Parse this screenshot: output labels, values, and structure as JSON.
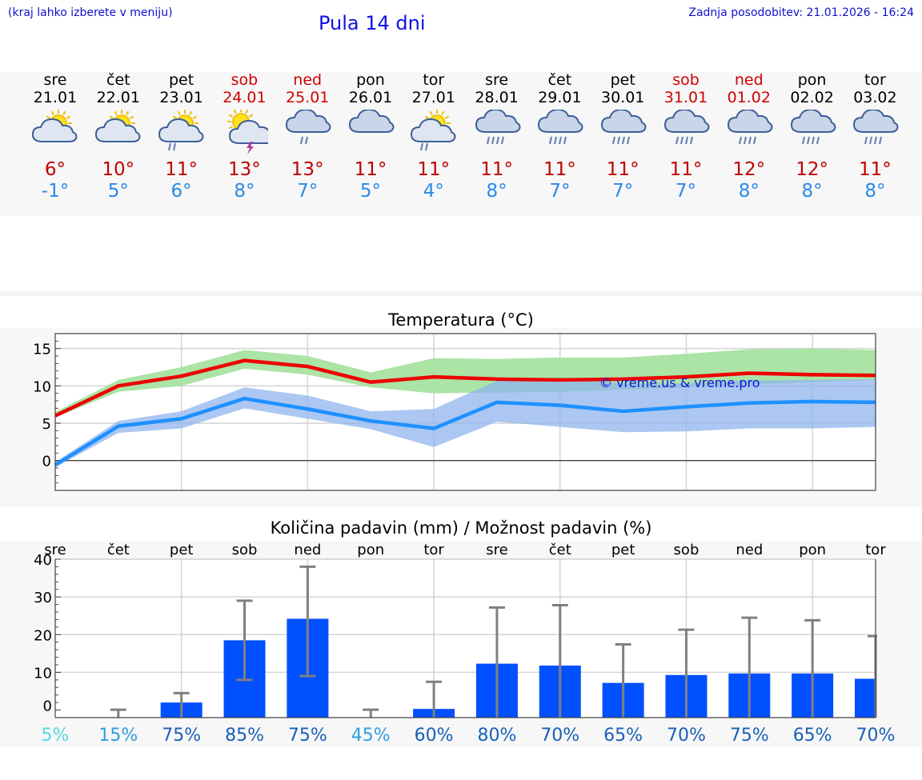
{
  "header": {
    "hint": "(kraj lahko izberete v meniju)",
    "title": "Pula 14 dni",
    "updated": "Zadnja posodobitev: 21.01.2026 - 16:24"
  },
  "days": [
    {
      "name": "sre",
      "date": "21.01",
      "weekend": false,
      "icon": "sun-cloud-icon",
      "hi": "6°",
      "lo": "-1°"
    },
    {
      "name": "čet",
      "date": "22.01",
      "weekend": false,
      "icon": "sun-cloud-icon",
      "hi": "10°",
      "lo": "5°"
    },
    {
      "name": "pet",
      "date": "23.01",
      "weekend": false,
      "icon": "sun-cloud-rain-icon",
      "hi": "11°",
      "lo": "6°"
    },
    {
      "name": "sob",
      "date": "24.01",
      "weekend": true,
      "icon": "sun-cloud-thunder-icon",
      "hi": "13°",
      "lo": "8°"
    },
    {
      "name": "ned",
      "date": "25.01",
      "weekend": true,
      "icon": "cloud-rain-icon",
      "hi": "13°",
      "lo": "7°"
    },
    {
      "name": "pon",
      "date": "26.01",
      "weekend": false,
      "icon": "cloud-icon",
      "hi": "11°",
      "lo": "5°"
    },
    {
      "name": "tor",
      "date": "27.01",
      "weekend": false,
      "icon": "sun-cloud-rain-icon",
      "hi": "11°",
      "lo": "4°"
    },
    {
      "name": "sre",
      "date": "28.01",
      "weekend": false,
      "icon": "cloud-heavy-rain-icon",
      "hi": "11°",
      "lo": "8°"
    },
    {
      "name": "čet",
      "date": "29.01",
      "weekend": false,
      "icon": "cloud-heavy-rain-icon",
      "hi": "11°",
      "lo": "7°"
    },
    {
      "name": "pet",
      "date": "30.01",
      "weekend": false,
      "icon": "cloud-heavy-rain-icon",
      "hi": "11°",
      "lo": "7°"
    },
    {
      "name": "sob",
      "date": "31.01",
      "weekend": true,
      "icon": "cloud-heavy-rain-icon",
      "hi": "11°",
      "lo": "7°"
    },
    {
      "name": "ned",
      "date": "01.02",
      "weekend": true,
      "icon": "cloud-heavy-rain-icon",
      "hi": "12°",
      "lo": "8°"
    },
    {
      "name": "pon",
      "date": "02.02",
      "weekend": false,
      "icon": "cloud-heavy-rain-icon",
      "hi": "12°",
      "lo": "8°"
    },
    {
      "name": "tor",
      "date": "03.02",
      "weekend": false,
      "icon": "cloud-heavy-rain-icon",
      "hi": "11°",
      "lo": "8°"
    }
  ],
  "colors": {
    "hi_line": "#ee0000",
    "hi_band": "#a6e3a0",
    "lo_line": "#1e90ff",
    "lo_band": "#8fb4ee",
    "bar": "#0050ff",
    "err": "#808080",
    "pct_low": "#5ad8e0",
    "pct_mid": "#2e9fe0",
    "pct_high": "#1a5fb8"
  },
  "chart_data": [
    {
      "type": "line",
      "title": "Temperatura (°C)",
      "watermark": "© vreme.us & vreme.pro",
      "x": [
        0,
        1,
        2,
        3,
        4,
        5,
        6,
        7,
        8,
        9,
        10,
        11,
        12,
        13
      ],
      "ylim": [
        -4,
        17
      ],
      "yticks": [
        0,
        5,
        10,
        15
      ],
      "series": [
        {
          "name": "max",
          "values": [
            6.0,
            10.0,
            11.3,
            13.4,
            12.6,
            10.5,
            11.2,
            10.9,
            10.8,
            10.9,
            11.2,
            11.7,
            11.5,
            11.4
          ],
          "band_low": [
            5.8,
            9.2,
            10.0,
            12.3,
            11.5,
            9.8,
            9.0,
            9.1,
            9.2,
            9.5,
            9.8,
            10.2,
            10.5,
            10.8
          ],
          "band_high": [
            6.5,
            10.8,
            12.5,
            14.8,
            14.0,
            11.8,
            13.7,
            13.6,
            13.8,
            13.8,
            14.3,
            14.9,
            15.0,
            14.8
          ]
        },
        {
          "name": "min",
          "values": [
            -0.6,
            4.6,
            5.6,
            8.3,
            6.9,
            5.3,
            4.3,
            7.8,
            7.4,
            6.6,
            7.2,
            7.7,
            7.9,
            7.8
          ],
          "band_low": [
            -0.9,
            3.7,
            4.3,
            7.0,
            5.6,
            4.2,
            1.8,
            5.2,
            4.5,
            3.8,
            3.9,
            4.3,
            4.3,
            4.5
          ],
          "band_high": [
            -0.2,
            5.3,
            6.6,
            9.8,
            8.7,
            6.6,
            6.9,
            10.7,
            11.1,
            10.3,
            10.3,
            10.7,
            10.8,
            10.9
          ]
        }
      ]
    },
    {
      "type": "bar",
      "title": "Količina padavin (mm) / Možnost padavin (%)",
      "categories": [
        "sre",
        "čet",
        "pet",
        "sob",
        "ned",
        "pon",
        "tor",
        "sre",
        "čet",
        "pet",
        "sob",
        "ned",
        "pon",
        "tor"
      ],
      "ylim": [
        -2,
        40
      ],
      "yticks": [
        0,
        10,
        20,
        30,
        40
      ],
      "values": [
        0,
        0,
        2,
        18.5,
        24.2,
        0,
        0.3,
        12.3,
        11.8,
        7.2,
        9.3,
        9.7,
        9.7,
        8.3
      ],
      "err_low": [
        0,
        0,
        0,
        8,
        9,
        0,
        0,
        0,
        0,
        0,
        0,
        0,
        0,
        0
      ],
      "err_high": [
        0,
        0.1,
        4.5,
        29,
        38,
        0.1,
        7.5,
        27.2,
        27.8,
        17.4,
        21.3,
        24.5,
        23.8,
        19.6
      ],
      "probability": [
        "5%",
        "15%",
        "75%",
        "85%",
        "75%",
        "45%",
        "60%",
        "80%",
        "70%",
        "65%",
        "70%",
        "75%",
        "65%",
        "70%"
      ],
      "probability_values": [
        5,
        15,
        75,
        85,
        75,
        45,
        60,
        80,
        70,
        65,
        70,
        75,
        65,
        70
      ]
    }
  ]
}
